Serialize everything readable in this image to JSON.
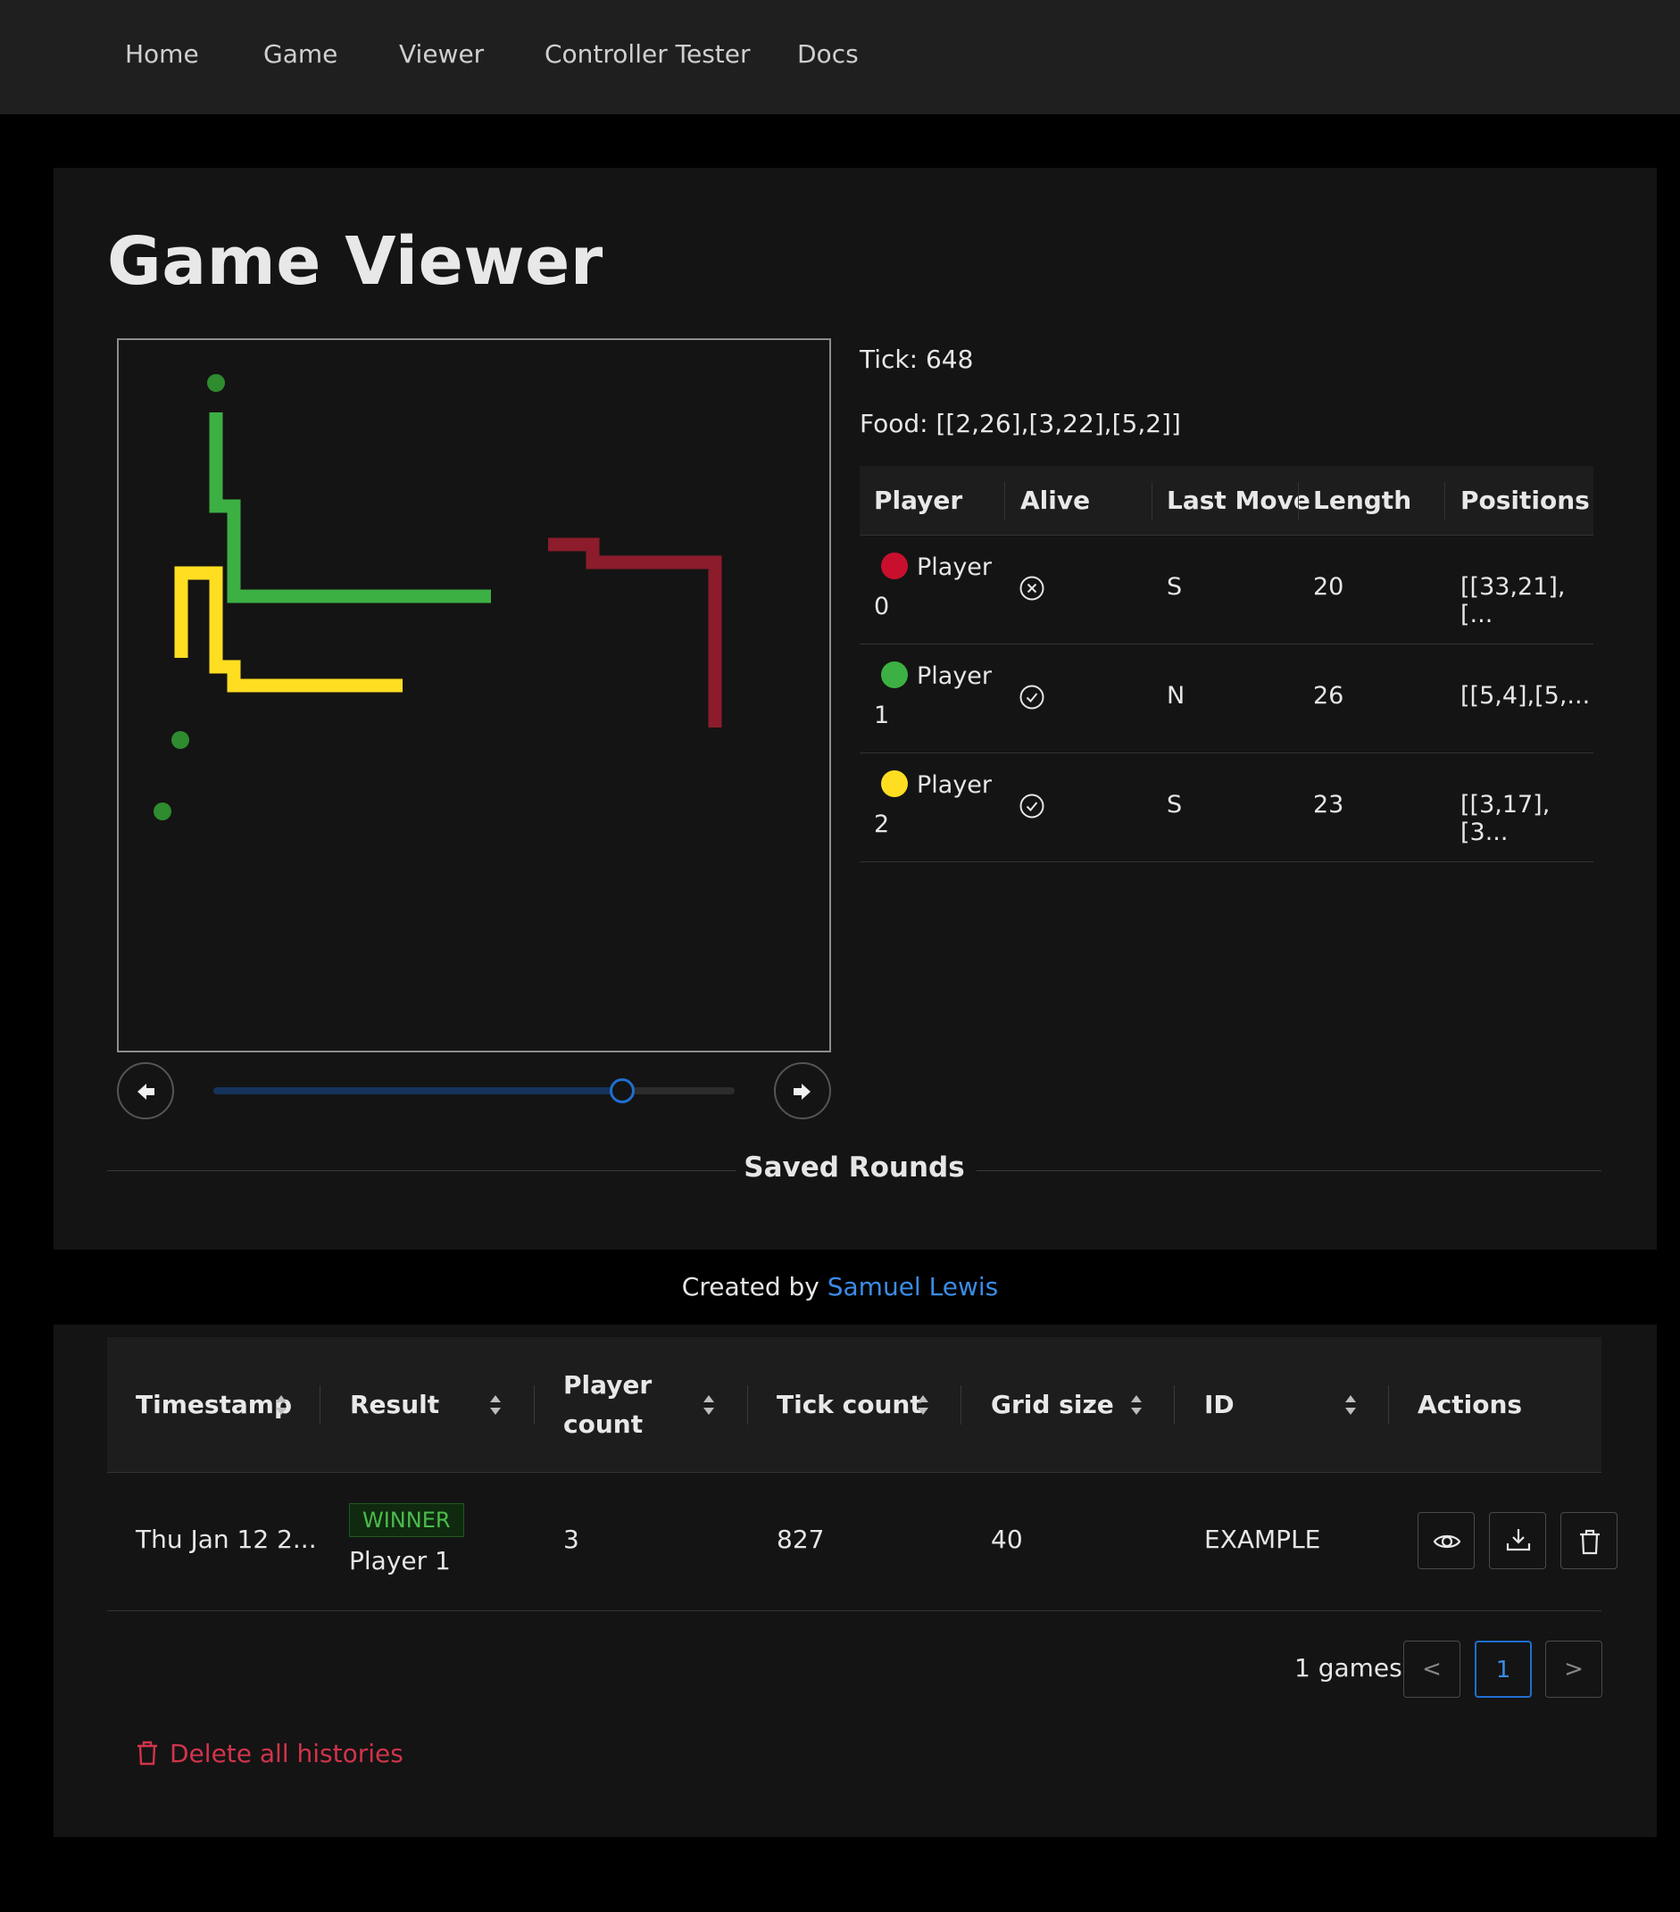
{
  "nav": {
    "items": [
      "Home",
      "Game",
      "Viewer",
      "Controller Tester",
      "Docs"
    ]
  },
  "page": {
    "title": "Game Viewer"
  },
  "viewer": {
    "tick_label": "Tick: 648",
    "food_label": "Food: [[2,26],[3,22],[5,2]]",
    "tick": 648,
    "max_tick": 827,
    "food": [
      [
        2,
        26
      ],
      [
        3,
        22
      ],
      [
        5,
        2
      ]
    ],
    "colors": {
      "player0": "#8c1c2b",
      "player1": "#3cb043",
      "player2": "#ffde21",
      "food": "#2e8b2e"
    }
  },
  "players_table": {
    "headers": [
      "Player",
      "Alive",
      "Last Move",
      "Length",
      "Positions"
    ],
    "rows": [
      {
        "name_line1": "Player",
        "name_line2": "0",
        "color": "#c8102e",
        "alive": false,
        "alive_icon": "x-circle-icon",
        "last_move": "S",
        "length": "20",
        "positions": "[[33,21],[..."
      },
      {
        "name_line1": "Player",
        "name_line2": "1",
        "color": "#3cb043",
        "alive": true,
        "alive_icon": "check-circle-icon",
        "last_move": "N",
        "length": "26",
        "positions": "[[5,4],[5,..."
      },
      {
        "name_line1": "Player",
        "name_line2": "2",
        "color": "#ffde21",
        "alive": true,
        "alive_icon": "check-circle-icon",
        "last_move": "S",
        "length": "23",
        "positions": "[[3,17],[3..."
      }
    ]
  },
  "saved_rounds": {
    "divider_label": "Saved Rounds"
  },
  "footer": {
    "prefix": "Created by",
    "author": "Samuel Lewis"
  },
  "games_table": {
    "headers": {
      "timestamp": "Timestamp",
      "result": "Result",
      "player_count_1": "Player",
      "player_count_2": "count",
      "tick_count": "Tick count",
      "grid_size": "Grid size",
      "id": "ID",
      "actions": "Actions"
    },
    "rows": [
      {
        "timestamp": "Thu Jan 12 2...",
        "result_tag": "WINNER",
        "result_player": "Player 1",
        "player_count": "3",
        "tick_count": "827",
        "grid_size": "40",
        "id": "EXAMPLE"
      }
    ],
    "games_count": "1 games",
    "pages": [
      "<",
      "1",
      ">"
    ],
    "current_page": "1"
  },
  "delete_all_label": "Delete all histories"
}
